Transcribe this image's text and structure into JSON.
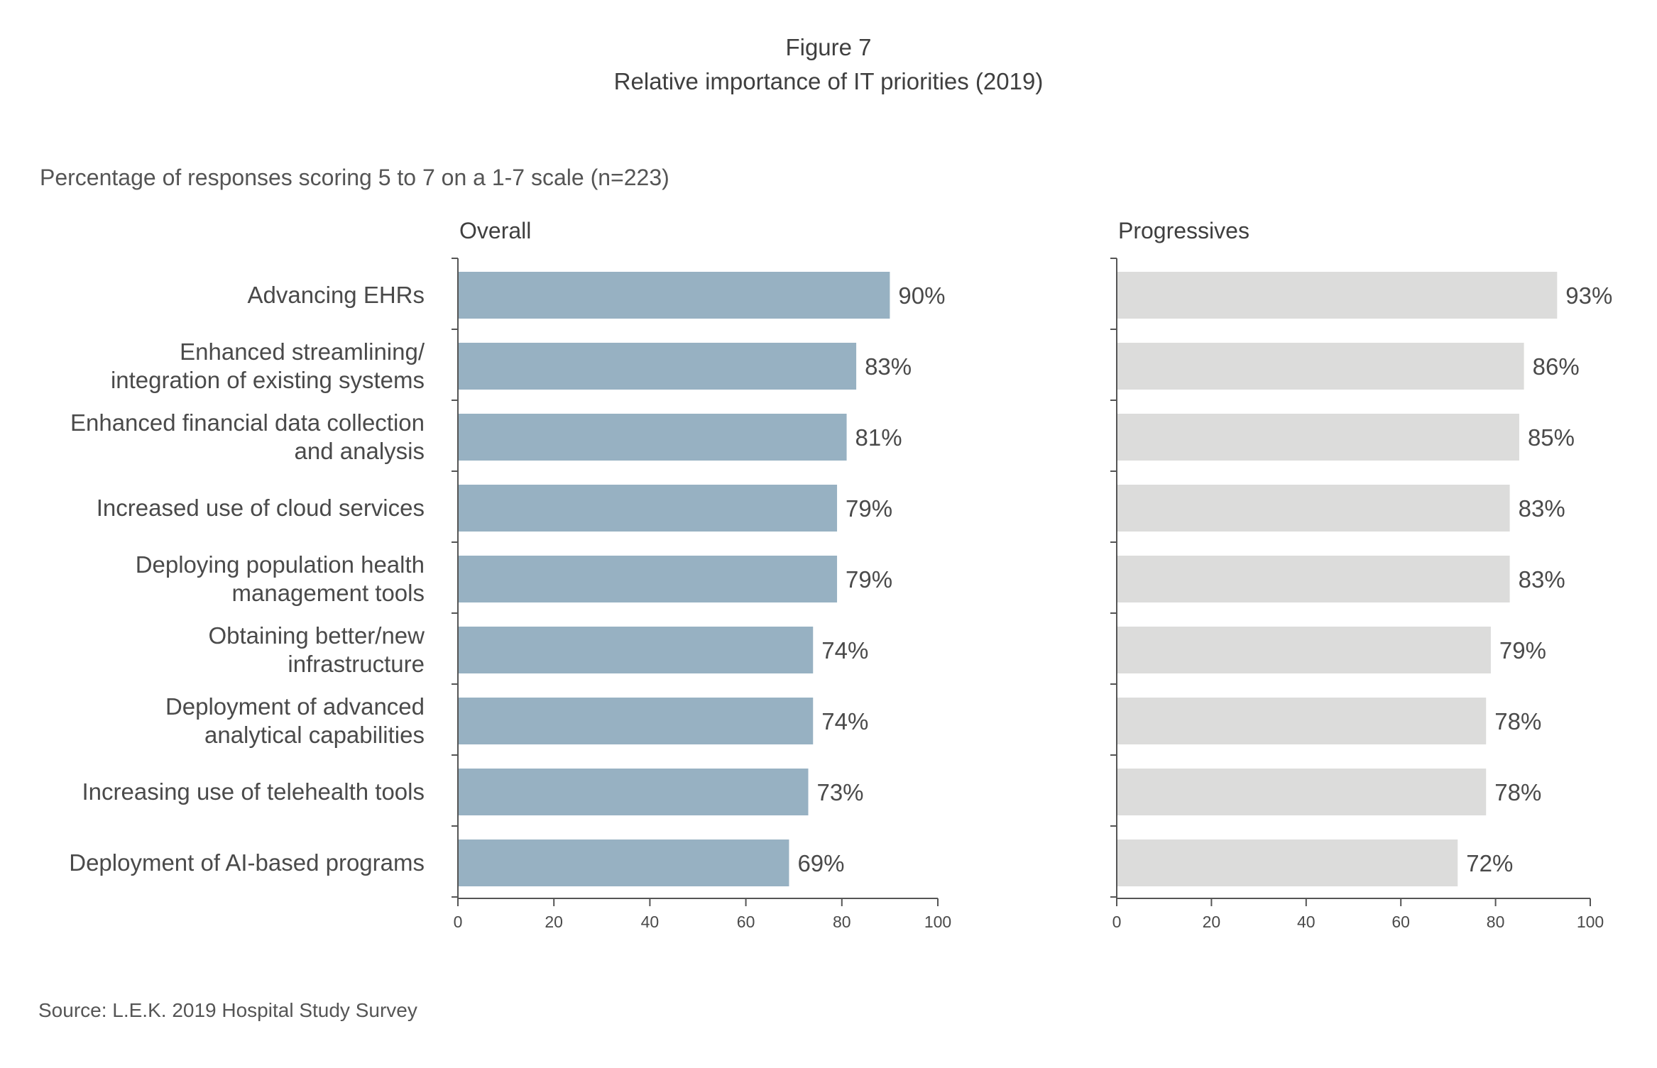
{
  "figure": {
    "label": "Figure 7",
    "title": "Relative importance of IT priorities (2019)",
    "subtitle": "Percentage of responses scoring 5 to 7 on a 1-7 scale (n=223)",
    "source": "Source: L.E.K. 2019 Hospital Study Survey"
  },
  "chart_data": [
    {
      "type": "bar",
      "orientation": "horizontal",
      "title": "Overall",
      "color": "#97b1c2",
      "categories": [
        [
          "Advancing EHRs"
        ],
        [
          "Enhanced streamlining/",
          "integration of existing systems"
        ],
        [
          "Enhanced financial data collection",
          "and analysis"
        ],
        [
          "Increased use of cloud services"
        ],
        [
          "Deploying population health",
          "management tools"
        ],
        [
          "Obtaining better/new",
          "infrastructure"
        ],
        [
          "Deployment of advanced",
          "analytical capabilities"
        ],
        [
          "Increasing use of telehealth tools"
        ],
        [
          "Deployment of AI-based programs"
        ]
      ],
      "values": [
        90,
        83,
        81,
        79,
        79,
        74,
        74,
        73,
        69
      ],
      "value_labels": [
        "90%",
        "83%",
        "81%",
        "79%",
        "79%",
        "74%",
        "74%",
        "73%",
        "69%"
      ],
      "xlim": [
        0,
        100
      ],
      "xticks": [
        "0",
        "20",
        "40",
        "60",
        "80",
        "100"
      ]
    },
    {
      "type": "bar",
      "orientation": "horizontal",
      "title": "Progressives",
      "color": "#dcdcdb",
      "values": [
        93,
        86,
        85,
        83,
        83,
        79,
        78,
        78,
        72
      ],
      "value_labels": [
        "93%",
        "86%",
        "85%",
        "83%",
        "83%",
        "79%",
        "78%",
        "78%",
        "72%"
      ],
      "xlim": [
        0,
        100
      ],
      "xticks": [
        "0",
        "20",
        "40",
        "60",
        "80",
        "100"
      ]
    }
  ]
}
